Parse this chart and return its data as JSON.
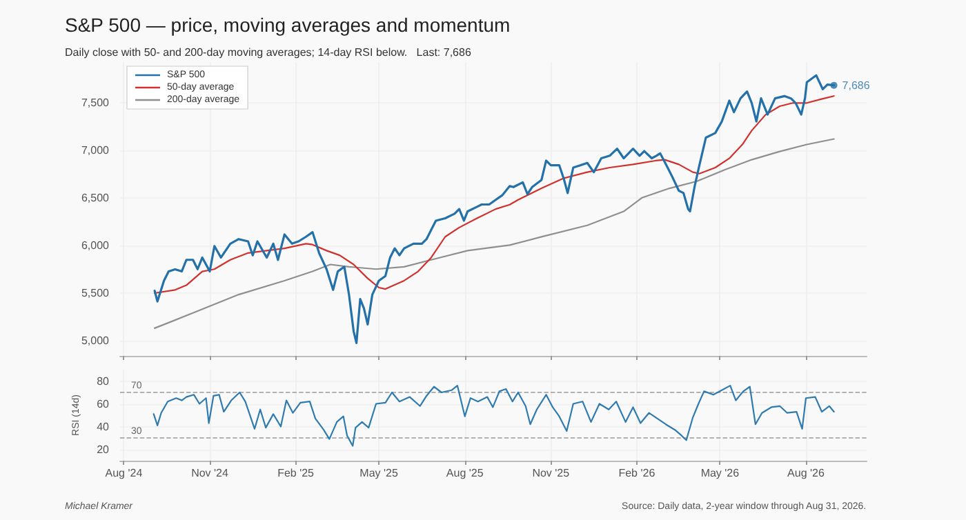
{
  "chart_data": [
    {
      "type": "line",
      "title": "S&P 500 — price, moving averages and momentum",
      "subtitle": "Daily close with 50- and 200-day moving averages; 14-day RSI below.   Last: 7,686",
      "xlim": [
        "2024-07-28",
        "2026-10-05"
      ],
      "xticks": [
        "2024-08-01",
        "2024-11-01",
        "2025-02-01",
        "2025-05-01",
        "2025-08-01",
        "2025-11-01",
        "2026-02-01",
        "2026-05-01",
        "2026-08-01"
      ],
      "ylim": [
        4840,
        7930
      ],
      "yticks": [
        {
          "value": 5000,
          "label": "5,000"
        },
        {
          "value": 5500,
          "label": "5,500"
        },
        {
          "value": 6000,
          "label": "6,000"
        },
        {
          "value": 6500,
          "label": "6,500"
        },
        {
          "value": 7000,
          "label": "7,000"
        },
        {
          "value": 7500,
          "label": "7,500"
        }
      ],
      "tick_labels": "y",
      "grid": true,
      "legend": "top left",
      "marker": "none",
      "line_style": "solid",
      "annotations": [
        {
          "text": "7,686",
          "x": "2026-08-31",
          "y": 7686
        }
      ],
      "series": [
        {
          "name": "S&P 500",
          "color": "#2470a8",
          "x": [
            "2024-09-03",
            "2024-09-06",
            "2024-09-13",
            "2024-09-18",
            "2024-09-25",
            "2024-10-02",
            "2024-10-07",
            "2024-10-14",
            "2024-10-19",
            "2024-10-24",
            "2024-11-01",
            "2024-11-06",
            "2024-11-13",
            "2024-11-23",
            "2024-12-02",
            "2024-12-12",
            "2024-12-17",
            "2024-12-22",
            "2025-01-01",
            "2025-01-08",
            "2025-01-13",
            "2025-01-20",
            "2025-01-28",
            "2025-02-04",
            "2025-02-12",
            "2025-02-19",
            "2025-02-26",
            "2025-03-06",
            "2025-03-13",
            "2025-03-18",
            "2025-03-25",
            "2025-03-30",
            "2025-04-04",
            "2025-04-07",
            "2025-04-11",
            "2025-04-15",
            "2025-04-19",
            "2025-04-24",
            "2025-05-01",
            "2025-05-08",
            "2025-05-13",
            "2025-05-18",
            "2025-05-23",
            "2025-05-28",
            "2025-06-07",
            "2025-06-16",
            "2025-06-21",
            "2025-06-26",
            "2025-07-01",
            "2025-07-11",
            "2025-07-21",
            "2025-07-26",
            "2025-07-31",
            "2025-08-04",
            "2025-08-14",
            "2025-08-19",
            "2025-08-27",
            "2025-09-03",
            "2025-09-10",
            "2025-09-18",
            "2025-09-22",
            "2025-10-02",
            "2025-10-07",
            "2025-10-12",
            "2025-10-22",
            "2025-10-27",
            "2025-11-01",
            "2025-11-10",
            "2025-11-15",
            "2025-11-19",
            "2025-11-25",
            "2025-12-03",
            "2025-12-10",
            "2025-12-17",
            "2025-12-25",
            "2026-01-03",
            "2026-01-11",
            "2026-01-18",
            "2026-01-28",
            "2026-02-04",
            "2026-02-09",
            "2026-02-17",
            "2026-02-22",
            "2026-02-26",
            "2026-03-06",
            "2026-03-11",
            "2026-03-18",
            "2026-03-23",
            "2026-03-28",
            "2026-03-30",
            "2026-04-04",
            "2026-04-09",
            "2026-04-16",
            "2026-04-26",
            "2026-05-03",
            "2026-05-11",
            "2026-05-16",
            "2026-05-23",
            "2026-05-30",
            "2026-06-04",
            "2026-06-09",
            "2026-06-14",
            "2026-06-21",
            "2026-06-29",
            "2026-07-09",
            "2026-07-16",
            "2026-07-21",
            "2026-07-27",
            "2026-07-31",
            "2026-08-02",
            "2026-08-12",
            "2026-08-19",
            "2026-08-24",
            "2026-08-31"
          ],
          "values": [
            5525,
            5413,
            5631,
            5728,
            5750,
            5728,
            5850,
            5850,
            5752,
            5874,
            5728,
            5995,
            5874,
            6020,
            6068,
            6044,
            5898,
            6044,
            5874,
            6020,
            5850,
            6117,
            6020,
            6044,
            6093,
            6141,
            5922,
            5752,
            5534,
            5728,
            5777,
            5485,
            5097,
            4976,
            5437,
            5340,
            5170,
            5485,
            5631,
            5680,
            5874,
            5971,
            5898,
            5971,
            6020,
            6020,
            6068,
            6165,
            6262,
            6287,
            6335,
            6384,
            6262,
            6360,
            6408,
            6432,
            6432,
            6481,
            6529,
            6626,
            6615,
            6665,
            6541,
            6615,
            6690,
            6893,
            6845,
            6845,
            6699,
            6553,
            6820,
            6845,
            6869,
            6772,
            6918,
            6945,
            7019,
            6918,
            7019,
            6945,
            6994,
            6918,
            6945,
            6970,
            6820,
            6723,
            6577,
            6553,
            6383,
            6359,
            6626,
            6845,
            7136,
            7184,
            7305,
            7524,
            7403,
            7548,
            7621,
            7500,
            7305,
            7548,
            7378,
            7548,
            7572,
            7548,
            7500,
            7378,
            7548,
            7718,
            7791,
            7645,
            7694,
            7686
          ]
        },
        {
          "name": "50-day average",
          "color": "#d0312d",
          "x": [
            "2024-09-03",
            "2024-09-25",
            "2024-10-07",
            "2024-10-24",
            "2024-11-06",
            "2024-11-23",
            "2024-12-12",
            "2025-01-01",
            "2025-01-20",
            "2025-02-12",
            "2025-02-19",
            "2025-03-06",
            "2025-03-20",
            "2025-04-04",
            "2025-04-19",
            "2025-05-01",
            "2025-05-08",
            "2025-05-28",
            "2025-06-12",
            "2025-06-26",
            "2025-07-11",
            "2025-07-26",
            "2025-08-14",
            "2025-09-03",
            "2025-09-18",
            "2025-09-27",
            "2025-10-22",
            "2025-11-15",
            "2025-12-10",
            "2026-01-03",
            "2026-01-28",
            "2026-02-21",
            "2026-03-03",
            "2026-03-18",
            "2026-04-02",
            "2026-04-09",
            "2026-04-26",
            "2026-05-11",
            "2026-05-25",
            "2026-06-04",
            "2026-06-19",
            "2026-07-04",
            "2026-07-18",
            "2026-08-02",
            "2026-08-17",
            "2026-08-31"
          ],
          "values": [
            5500,
            5534,
            5583,
            5728,
            5752,
            5850,
            5922,
            5947,
            5971,
            6020,
            6010,
            5947,
            5898,
            5801,
            5655,
            5558,
            5543,
            5631,
            5728,
            5874,
            6093,
            6190,
            6287,
            6384,
            6430,
            6481,
            6602,
            6709,
            6772,
            6820,
            6854,
            6893,
            6903,
            6854,
            6772,
            6757,
            6820,
            6917,
            7063,
            7209,
            7378,
            7466,
            7500,
            7500,
            7539,
            7573
          ]
        },
        {
          "name": "200-day average",
          "color": "#8f8f8f",
          "x": [
            "2024-09-03",
            "2024-10-14",
            "2024-12-02",
            "2025-01-20",
            "2025-02-19",
            "2025-03-10",
            "2025-03-30",
            "2025-04-28",
            "2025-05-28",
            "2025-06-26",
            "2025-08-04",
            "2025-09-18",
            "2025-10-22",
            "2025-12-10",
            "2026-01-18",
            "2026-02-07",
            "2026-03-08",
            "2026-04-06",
            "2026-05-06",
            "2026-06-04",
            "2026-07-04",
            "2026-08-02",
            "2026-08-31"
          ],
          "values": [
            5131,
            5291,
            5485,
            5631,
            5728,
            5801,
            5777,
            5752,
            5777,
            5850,
            5947,
            6005,
            6092,
            6213,
            6359,
            6505,
            6602,
            6675,
            6796,
            6903,
            6990,
            7063,
            7121
          ]
        },
        {
          "type": "scatter",
          "marker": "circle",
          "color": "#2470a8",
          "x": [
            "2026-08-31"
          ],
          "values": [
            7686
          ]
        }
      ]
    },
    {
      "type": "line",
      "ylabel": "RSI (14d)",
      "xlim": [
        "2024-07-28",
        "2026-10-05"
      ],
      "xticks": [
        {
          "value": "2024-08-01",
          "label": "Aug '24"
        },
        {
          "value": "2024-11-01",
          "label": "Nov '24"
        },
        {
          "value": "2025-02-01",
          "label": "Feb '25"
        },
        {
          "value": "2025-05-01",
          "label": "May '25"
        },
        {
          "value": "2025-08-01",
          "label": "Aug '25"
        },
        {
          "value": "2025-11-01",
          "label": "Nov '25"
        },
        {
          "value": "2026-02-01",
          "label": "Feb '26"
        },
        {
          "value": "2026-05-01",
          "label": "May '26"
        },
        {
          "value": "2026-08-01",
          "label": "Aug '26"
        }
      ],
      "ylim": [
        10,
        90
      ],
      "yticks": [
        20,
        40,
        60,
        80
      ],
      "grid": true,
      "marker": "none",
      "line_style": "solid",
      "ref_lines": [
        {
          "axis": "y",
          "value": 70,
          "label": "70",
          "color": "#999999",
          "line_style": "dashed"
        },
        {
          "axis": "y",
          "value": 30,
          "label": "30",
          "color": "#999999",
          "line_style": "dashed"
        }
      ],
      "annotations": [
        "Michael Kramer",
        "Source: Daily data, 2-year window through Aug 31, 2026."
      ],
      "series": [
        {
          "color": "#2f7bb0",
          "x": [
            "2024-09-02",
            "2024-09-06",
            "2024-09-10",
            "2024-09-17",
            "2024-09-26",
            "2024-10-02",
            "2024-10-07",
            "2024-10-15",
            "2024-10-21",
            "2024-10-28",
            "2024-10-31",
            "2024-11-05",
            "2024-11-11",
            "2024-11-16",
            "2024-11-24",
            "2024-12-03",
            "2024-12-09",
            "2024-12-19",
            "2024-12-25",
            "2024-12-31",
            "2025-01-08",
            "2025-01-16",
            "2025-01-22",
            "2025-01-29",
            "2025-02-06",
            "2025-02-16",
            "2025-02-22",
            "2025-03-03",
            "2025-03-09",
            "2025-03-17",
            "2025-03-24",
            "2025-03-28",
            "2025-04-03",
            "2025-04-06",
            "2025-04-13",
            "2025-04-20",
            "2025-04-28",
            "2025-05-08",
            "2025-05-15",
            "2025-05-23",
            "2025-06-03",
            "2025-06-14",
            "2025-06-21",
            "2025-06-29",
            "2025-07-07",
            "2025-07-18",
            "2025-07-24",
            "2025-08-01",
            "2025-08-07",
            "2025-08-15",
            "2025-08-25",
            "2025-08-31",
            "2025-09-07",
            "2025-09-14",
            "2025-09-21",
            "2025-09-27",
            "2025-10-05",
            "2025-10-10",
            "2025-10-17",
            "2025-10-27",
            "2025-11-03",
            "2025-11-10",
            "2025-11-18",
            "2025-11-25",
            "2025-12-05",
            "2025-12-14",
            "2025-12-23",
            "2026-01-02",
            "2026-01-10",
            "2026-01-20",
            "2026-01-28",
            "2026-02-05",
            "2026-02-14",
            "2026-02-23",
            "2026-03-04",
            "2026-03-14",
            "2026-03-21",
            "2026-03-26",
            "2026-04-02",
            "2026-04-08",
            "2026-04-14",
            "2026-04-24",
            "2026-05-03",
            "2026-05-12",
            "2026-05-18",
            "2026-05-26",
            "2026-06-02",
            "2026-06-08",
            "2026-06-15",
            "2026-06-25",
            "2026-07-04",
            "2026-07-12",
            "2026-07-22",
            "2026-07-28",
            "2026-08-01",
            "2026-08-11",
            "2026-08-18",
            "2026-08-26",
            "2026-08-31"
          ],
          "values": [
            51,
            41,
            52,
            62,
            65,
            63,
            66,
            68,
            60,
            65,
            43,
            67,
            68,
            53,
            63,
            70,
            62,
            38,
            55,
            39,
            51,
            40,
            63,
            52,
            61,
            62,
            47,
            37,
            29,
            44,
            49,
            32,
            23,
            39,
            44,
            39,
            60,
            61,
            70,
            62,
            66,
            58,
            67,
            75,
            70,
            72,
            76,
            49,
            65,
            62,
            66,
            57,
            71,
            73,
            62,
            70,
            58,
            42,
            55,
            68,
            57,
            49,
            36,
            60,
            62,
            44,
            60,
            55,
            62,
            44,
            57,
            43,
            52,
            47,
            42,
            37,
            32,
            28,
            48,
            60,
            71,
            68,
            72,
            76,
            63,
            71,
            75,
            42,
            52,
            57,
            58,
            52,
            53,
            38,
            65,
            66,
            53,
            58,
            53
          ]
        }
      ]
    }
  ]
}
